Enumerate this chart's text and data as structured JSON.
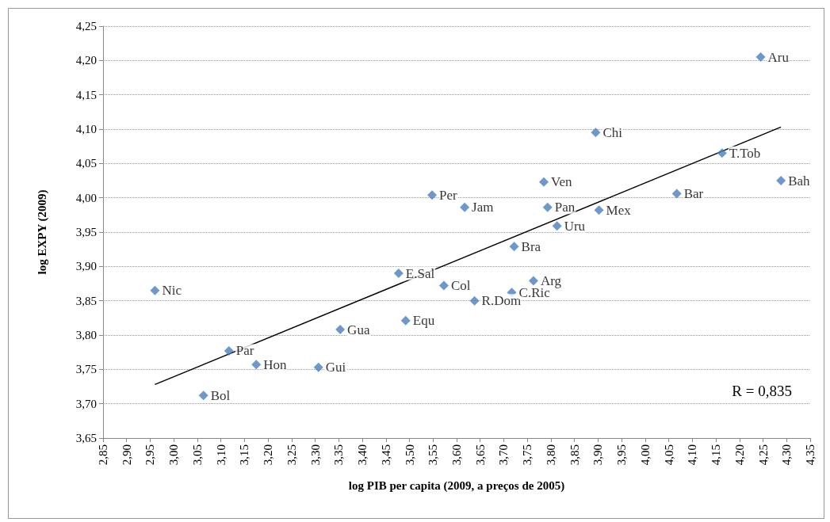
{
  "chart_data": {
    "type": "scatter",
    "xlabel": "log PIB per capita (2009, a preços de 2005)",
    "ylabel": "log EXPY (2009)",
    "x": [
      2.96,
      3.063,
      3.117,
      3.175,
      3.307,
      3.353,
      3.477,
      3.492,
      3.573,
      3.548,
      3.617,
      3.638,
      3.722,
      3.717,
      3.763,
      3.785,
      3.793,
      3.813,
      3.895,
      3.902,
      4.067,
      4.163,
      4.245,
      4.288
    ],
    "series": [
      {
        "color": "#4a7ebb",
        "marker": "diamond",
        "values": [
          3.865,
          3.712,
          3.777,
          3.757,
          3.753,
          3.808,
          3.89,
          3.821,
          3.872,
          4.004,
          3.986,
          3.85,
          3.929,
          3.862,
          3.879,
          4.023,
          3.986,
          3.959,
          4.095,
          3.982,
          4.006,
          4.065,
          4.205,
          4.025
        ]
      },
      {
        "type": "line",
        "color": "#000000",
        "marker": "none",
        "x": [
          2.96,
          4.288
        ],
        "values": [
          3.728,
          4.103
        ]
      }
    ],
    "annotations": [
      {
        "text": "Nic",
        "x": 2.96,
        "y": 3.865
      },
      {
        "text": "Bol",
        "x": 3.063,
        "y": 3.712
      },
      {
        "text": "Par",
        "x": 3.117,
        "y": 3.777
      },
      {
        "text": "Hon",
        "x": 3.175,
        "y": 3.757
      },
      {
        "text": "Gui",
        "x": 3.307,
        "y": 3.753
      },
      {
        "text": "Gua",
        "x": 3.353,
        "y": 3.808
      },
      {
        "text": "E.Sal",
        "x": 3.477,
        "y": 3.89
      },
      {
        "text": "Equ",
        "x": 3.492,
        "y": 3.821
      },
      {
        "text": "Col",
        "x": 3.573,
        "y": 3.872
      },
      {
        "text": "Per",
        "x": 3.548,
        "y": 4.004
      },
      {
        "text": "Jam",
        "x": 3.617,
        "y": 3.986
      },
      {
        "text": "R.Dom",
        "x": 3.638,
        "y": 3.85
      },
      {
        "text": "Bra",
        "x": 3.722,
        "y": 3.929
      },
      {
        "text": "C.Ric",
        "x": 3.717,
        "y": 3.862
      },
      {
        "text": "Arg",
        "x": 3.763,
        "y": 3.879
      },
      {
        "text": "Ven",
        "x": 3.785,
        "y": 4.023
      },
      {
        "text": "Pan",
        "x": 3.793,
        "y": 3.986
      },
      {
        "text": "Uru",
        "x": 3.813,
        "y": 3.959
      },
      {
        "text": "Chi",
        "x": 3.895,
        "y": 4.095
      },
      {
        "text": "Mex",
        "x": 3.902,
        "y": 3.982
      },
      {
        "text": "Bar",
        "x": 4.067,
        "y": 4.006
      },
      {
        "text": "T.Tob",
        "x": 4.163,
        "y": 4.065
      },
      {
        "text": "Aru",
        "x": 4.245,
        "y": 4.205
      },
      {
        "text": "Bah",
        "x": 4.288,
        "y": 4.025
      },
      "R = 0,835"
    ],
    "xlim": [
      2.85,
      4.35
    ],
    "xticks": [
      {
        "value": 2.85,
        "label": "2,85"
      },
      {
        "value": 2.9,
        "label": "2,90"
      },
      {
        "value": 2.95,
        "label": "2,95"
      },
      {
        "value": 3.0,
        "label": "3,00"
      },
      {
        "value": 3.05,
        "label": "3,05"
      },
      {
        "value": 3.1,
        "label": "3,10"
      },
      {
        "value": 3.15,
        "label": "3,15"
      },
      {
        "value": 3.2,
        "label": "3,20"
      },
      {
        "value": 3.25,
        "label": "3,25"
      },
      {
        "value": 3.3,
        "label": "3,30"
      },
      {
        "value": 3.35,
        "label": "3,35"
      },
      {
        "value": 3.4,
        "label": "3,40"
      },
      {
        "value": 3.45,
        "label": "3,45"
      },
      {
        "value": 3.5,
        "label": "3,50"
      },
      {
        "value": 3.55,
        "label": "3,55"
      },
      {
        "value": 3.6,
        "label": "3,60"
      },
      {
        "value": 3.65,
        "label": "3,65"
      },
      {
        "value": 3.7,
        "label": "3,70"
      },
      {
        "value": 3.75,
        "label": "3,75"
      },
      {
        "value": 3.8,
        "label": "3,80"
      },
      {
        "value": 3.85,
        "label": "3,85"
      },
      {
        "value": 3.9,
        "label": "3,90"
      },
      {
        "value": 3.95,
        "label": "3,95"
      },
      {
        "value": 4.0,
        "label": "4,00"
      },
      {
        "value": 4.05,
        "label": "4,05"
      },
      {
        "value": 4.1,
        "label": "4,10"
      },
      {
        "value": 4.15,
        "label": "4,15"
      },
      {
        "value": 4.2,
        "label": "4,20"
      },
      {
        "value": 4.25,
        "label": "4,25"
      },
      {
        "value": 4.3,
        "label": "4,30"
      },
      {
        "value": 4.35,
        "label": "4,35"
      }
    ],
    "ylim": [
      3.65,
      4.25
    ],
    "yticks": [
      {
        "value": 3.65,
        "label": "3,65"
      },
      {
        "value": 3.7,
        "label": "3,70"
      },
      {
        "value": 3.75,
        "label": "3,75"
      },
      {
        "value": 3.8,
        "label": "3,80"
      },
      {
        "value": 3.85,
        "label": "3,85"
      },
      {
        "value": 3.9,
        "label": "3,90"
      },
      {
        "value": 3.95,
        "label": "3,95"
      },
      {
        "value": 4.0,
        "label": "4,00"
      },
      {
        "value": 4.05,
        "label": "4,05"
      },
      {
        "value": 4.1,
        "label": "4,10"
      },
      {
        "value": 4.15,
        "label": "4,15"
      },
      {
        "value": 4.2,
        "label": "4,20"
      },
      {
        "value": 4.25,
        "label": "4,25"
      }
    ],
    "grid": "y"
  }
}
